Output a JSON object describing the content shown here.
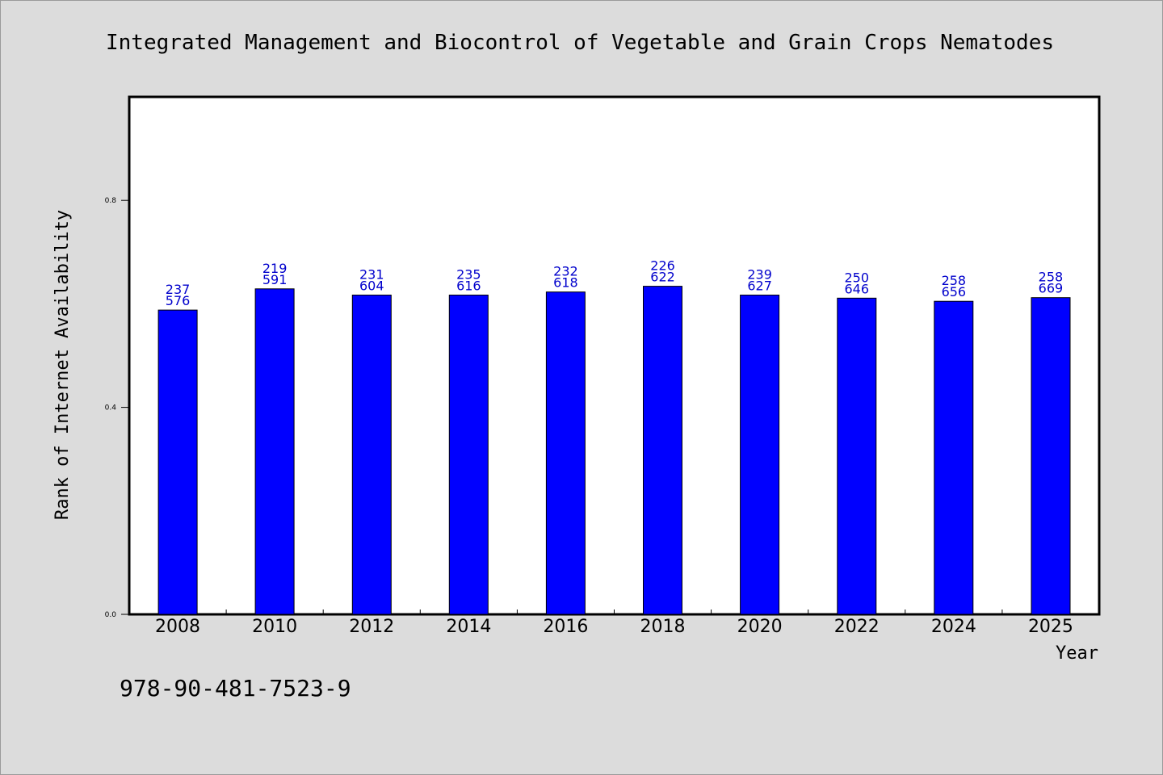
{
  "chart_data": {
    "type": "bar",
    "title": "Integrated Management and Biocontrol of Vegetable and Grain Crops Nematodes",
    "xlabel": "Year",
    "ylabel": "Rank of Internet Availability",
    "categories": [
      "2008",
      "2010",
      "2012",
      "2014",
      "2016",
      "2018",
      "2020",
      "2022",
      "2024",
      "2025"
    ],
    "values": [
      0.588,
      0.629,
      0.617,
      0.617,
      0.623,
      0.634,
      0.617,
      0.611,
      0.605,
      0.612
    ],
    "label_top": [
      "237",
      "219",
      "231",
      "235",
      "232",
      "226",
      "239",
      "250",
      "258",
      "258"
    ],
    "label_bottom": [
      "576",
      "591",
      "604",
      "616",
      "618",
      "622",
      "627",
      "646",
      "656",
      "669"
    ],
    "ylim": [
      0,
      1.0
    ],
    "yticks": [
      0.0,
      0.4,
      0.8
    ],
    "ytick_labels": [
      "0.0",
      "0.4",
      "0.8"
    ],
    "grid": false,
    "bar_color": "#0000ff",
    "label_color": "#0000cc",
    "background_color": "#dcdcdc",
    "plot_background": "#ffffff"
  },
  "footer": {
    "isbn": "978-90-481-7523-9"
  }
}
